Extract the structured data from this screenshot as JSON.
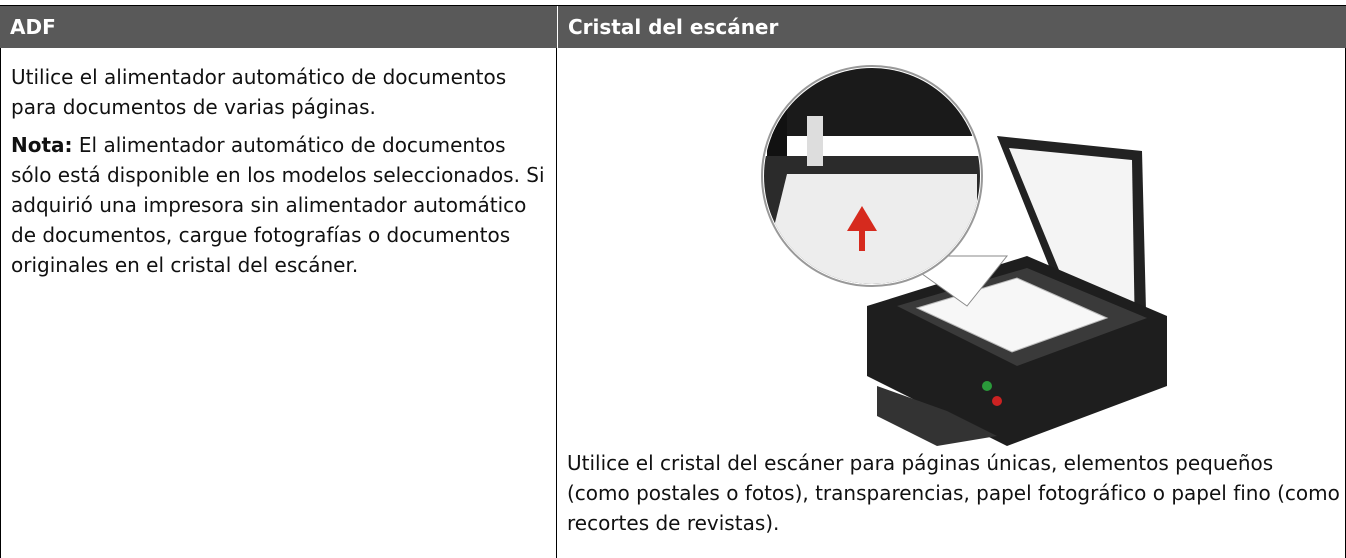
{
  "table": {
    "headers": [
      "ADF",
      "Cristal del escáner"
    ],
    "rows": [
      [
        {
          "paragraphs": [
            "Utilice el alimentador automático de documentos para documentos de varias páginas."
          ],
          "note": {
            "label": "Nota:",
            "text": "El alimentador automático de documentos sólo está disponible en los modelos seleccionados. Si adquirió una impresora sin alimentador automático de documentos, cargue fotografías o documentos originales en el cristal del escáner."
          }
        },
        {
          "caption": "Utilice el cristal del escáner para páginas únicas, elementos pequeños (como postales o fotos), transparencias, papel fotográfico o papel fino (como recortes de revistas)."
        }
      ]
    ]
  }
}
